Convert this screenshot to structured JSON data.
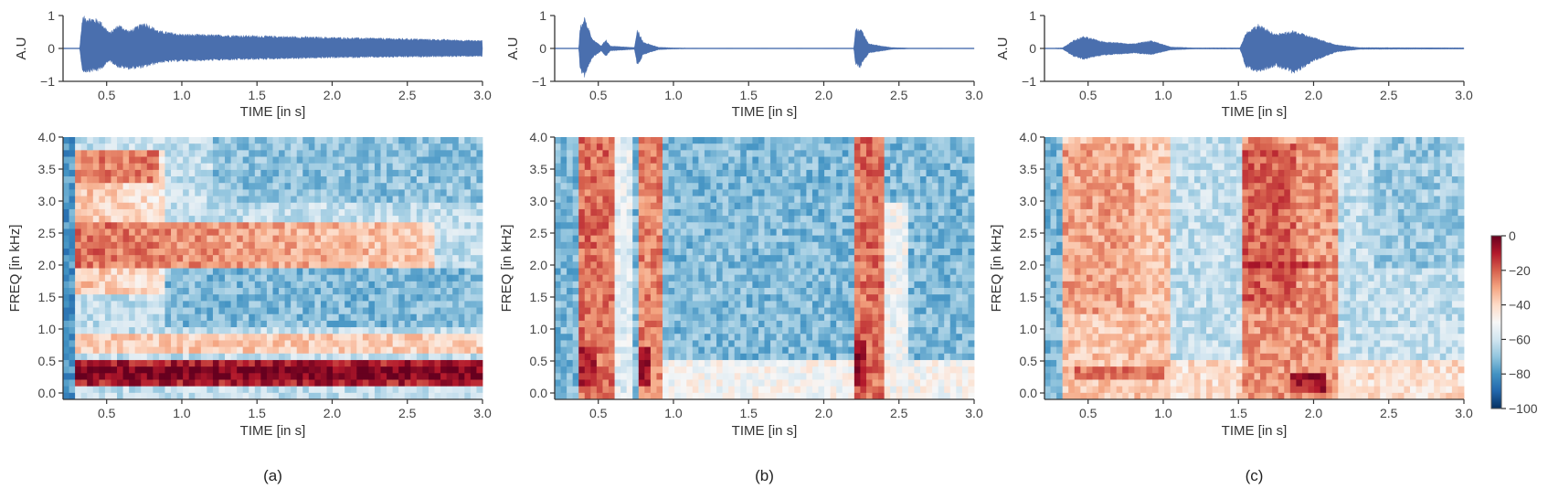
{
  "colors": {
    "waveform": "#4a6fae",
    "axis": "#333333",
    "colormap": "RdBu_r",
    "colormap_stops": [
      "#67001f",
      "#b2182b",
      "#d6604d",
      "#f4a582",
      "#fddbc7",
      "#f7f7f7",
      "#d1e5f0",
      "#92c5de",
      "#4393c3",
      "#2166ac",
      "#053061"
    ]
  },
  "colorbar": {
    "range": [
      -100,
      0
    ],
    "ticks": [
      0,
      -20,
      -40,
      -60,
      -80,
      -100
    ],
    "tick_labels": [
      "0",
      "−20",
      "−40",
      "−60",
      "−80",
      "−100"
    ]
  },
  "chart_data": [
    {
      "label": "(a)",
      "waveform": {
        "type": "area",
        "xlabel": "TIME [in s]",
        "ylabel": "A.U",
        "xlim": [
          0.21,
          3.0
        ],
        "ylim": [
          -1,
          1
        ],
        "xticks": [
          0.5,
          1.0,
          1.5,
          2.0,
          2.5,
          3.0
        ],
        "xtick_labels": [
          "0.5",
          "1.0",
          "1.5",
          "2.0",
          "2.5",
          "3.0"
        ],
        "yticks": [
          1,
          0,
          -1
        ],
        "ytick_labels": [
          "1",
          "0",
          "−1"
        ],
        "envelope": [
          [
            0.21,
            0.01,
            -0.01
          ],
          [
            0.32,
            0.01,
            -0.01
          ],
          [
            0.34,
            1.0,
            -0.75
          ],
          [
            0.45,
            0.9,
            -0.7
          ],
          [
            0.52,
            0.5,
            -0.4
          ],
          [
            0.58,
            0.75,
            -0.6
          ],
          [
            0.65,
            0.55,
            -0.65
          ],
          [
            0.75,
            0.82,
            -0.6
          ],
          [
            0.85,
            0.55,
            -0.45
          ],
          [
            1.0,
            0.45,
            -0.4
          ],
          [
            1.5,
            0.4,
            -0.35
          ],
          [
            2.0,
            0.35,
            -0.3
          ],
          [
            2.6,
            0.3,
            -0.27
          ],
          [
            3.0,
            0.25,
            -0.25
          ]
        ]
      },
      "spectrogram": {
        "type": "heatmap",
        "xlabel": "TIME [in s]",
        "ylabel": "FREQ [in kHz]",
        "xlim": [
          0.21,
          3.0
        ],
        "ylim": [
          -0.1,
          4.0
        ],
        "xticks": [
          0.5,
          1.0,
          1.5,
          2.0,
          2.5,
          3.0
        ],
        "xtick_labels": [
          "0.5",
          "1.0",
          "1.5",
          "2.0",
          "2.5",
          "3.0"
        ],
        "yticks": [
          0.0,
          0.5,
          1.0,
          1.5,
          2.0,
          2.5,
          3.0,
          3.5,
          4.0
        ],
        "ytick_labels": [
          "0.0",
          "0.5",
          "1.0",
          "1.5",
          "2.0",
          "2.5",
          "3.0",
          "3.5",
          "4.0"
        ],
        "background_db": -62,
        "regions_db": [
          {
            "t": [
              0.21,
              0.3
            ],
            "f": [
              -0.1,
              4.0
            ],
            "db": -80
          },
          {
            "t": [
              0.3,
              0.9
            ],
            "f": [
              1.5,
              3.8
            ],
            "db": -35,
            "db_end": -45
          },
          {
            "t": [
              0.3,
              2.7
            ],
            "f": [
              2.0,
              2.7
            ],
            "db": -22,
            "db_end": -38
          },
          {
            "t": [
              0.3,
              0.85
            ],
            "f": [
              3.3,
              3.8
            ],
            "db": -25
          },
          {
            "t": [
              0.9,
              3.0
            ],
            "f": [
              1.05,
              1.9
            ],
            "db": -72
          },
          {
            "t": [
              1.2,
              3.0
            ],
            "f": [
              3.0,
              4.0
            ],
            "db": -70
          },
          {
            "t": [
              0.3,
              3.0
            ],
            "f": [
              0.6,
              0.95
            ],
            "db": -38
          },
          {
            "t": [
              0.3,
              3.0
            ],
            "f": [
              0.1,
              0.55
            ],
            "db": -10
          },
          {
            "t": [
              0.3,
              3.0
            ],
            "f": [
              0.2,
              0.4
            ],
            "db": -3
          }
        ]
      }
    },
    {
      "label": "(b)",
      "waveform": {
        "type": "area",
        "xlabel": "TIME [in s]",
        "ylabel": "A.U",
        "xlim": [
          0.21,
          3.0
        ],
        "ylim": [
          -1,
          1
        ],
        "xticks": [
          0.5,
          1.0,
          1.5,
          2.0,
          2.5,
          3.0
        ],
        "xtick_labels": [
          "0.5",
          "1.0",
          "1.5",
          "2.0",
          "2.5",
          "3.0"
        ],
        "yticks": [
          1,
          0,
          -1
        ],
        "ytick_labels": [
          "1",
          "0",
          "−1"
        ],
        "envelope": [
          [
            0.21,
            0.01,
            -0.01
          ],
          [
            0.37,
            0.01,
            -0.01
          ],
          [
            0.38,
            0.7,
            -0.7
          ],
          [
            0.41,
            0.97,
            -0.9
          ],
          [
            0.46,
            0.3,
            -0.3
          ],
          [
            0.52,
            0.08,
            -0.08
          ],
          [
            0.55,
            0.28,
            -0.25
          ],
          [
            0.58,
            0.08,
            -0.08
          ],
          [
            0.74,
            0.03,
            -0.03
          ],
          [
            0.76,
            0.6,
            -0.55
          ],
          [
            0.8,
            0.2,
            -0.2
          ],
          [
            0.9,
            0.04,
            -0.04
          ],
          [
            1.0,
            0.02,
            -0.02
          ],
          [
            1.2,
            0.01,
            -0.01
          ],
          [
            2.2,
            0.01,
            -0.01
          ],
          [
            2.21,
            0.6,
            -0.5
          ],
          [
            2.24,
            0.65,
            -0.6
          ],
          [
            2.3,
            0.15,
            -0.15
          ],
          [
            2.45,
            0.03,
            -0.03
          ],
          [
            2.6,
            0.01,
            -0.01
          ],
          [
            3.0,
            0.01,
            -0.01
          ]
        ]
      },
      "spectrogram": {
        "type": "heatmap",
        "xlabel": "TIME [in s]",
        "ylabel": "FREQ [in kHz]",
        "xlim": [
          0.21,
          3.0
        ],
        "ylim": [
          -0.1,
          4.0
        ],
        "xticks": [
          0.5,
          1.0,
          1.5,
          2.0,
          2.5,
          3.0
        ],
        "xtick_labels": [
          "0.5",
          "1.0",
          "1.5",
          "2.0",
          "2.5",
          "3.0"
        ],
        "yticks": [
          0.0,
          0.5,
          1.0,
          1.5,
          2.0,
          2.5,
          3.0,
          3.5,
          4.0
        ],
        "ytick_labels": [
          "0.0",
          "0.5",
          "1.0",
          "1.5",
          "2.0",
          "2.5",
          "3.0",
          "3.5",
          "4.0"
        ],
        "background_db": -72,
        "regions_db": [
          {
            "t": [
              0.9,
              3.0
            ],
            "f": [
              -0.1,
              0.5
            ],
            "db": -50
          },
          {
            "t": [
              0.6,
              0.74
            ],
            "f": [
              -0.1,
              4.0
            ],
            "db": -55
          },
          {
            "t": [
              0.37,
              0.6
            ],
            "f": [
              -0.1,
              4.0
            ],
            "db": -22
          },
          {
            "t": [
              0.37,
              0.5
            ],
            "f": [
              0.1,
              0.7
            ],
            "db": -8
          },
          {
            "t": [
              0.75,
              0.92
            ],
            "f": [
              -0.1,
              4.0
            ],
            "db": -25
          },
          {
            "t": [
              0.75,
              0.85
            ],
            "f": [
              0.1,
              0.7
            ],
            "db": -10
          },
          {
            "t": [
              2.2,
              2.42
            ],
            "f": [
              -0.1,
              4.0
            ],
            "db": -22
          },
          {
            "t": [
              2.2,
              2.3
            ],
            "f": [
              0.1,
              0.8
            ],
            "db": -8
          },
          {
            "t": [
              2.42,
              2.55
            ],
            "f": [
              -0.1,
              3.0
            ],
            "db": -52
          }
        ]
      }
    },
    {
      "label": "(c)",
      "waveform": {
        "type": "area",
        "xlabel": "TIME [in s]",
        "ylabel": "A.U",
        "xlim": [
          0.21,
          3.0
        ],
        "ylim": [
          -1,
          1
        ],
        "xticks": [
          0.5,
          1.0,
          1.5,
          2.0,
          2.5,
          3.0
        ],
        "xtick_labels": [
          "0.5",
          "1.0",
          "1.5",
          "2.0",
          "2.5",
          "3.0"
        ],
        "yticks": [
          1,
          0,
          -1
        ],
        "ytick_labels": [
          "1",
          "0",
          "−1"
        ],
        "envelope": [
          [
            0.21,
            0.01,
            -0.01
          ],
          [
            0.33,
            0.02,
            -0.02
          ],
          [
            0.4,
            0.25,
            -0.25
          ],
          [
            0.47,
            0.38,
            -0.35
          ],
          [
            0.6,
            0.22,
            -0.22
          ],
          [
            0.8,
            0.15,
            -0.15
          ],
          [
            0.92,
            0.25,
            -0.2
          ],
          [
            1.05,
            0.05,
            -0.05
          ],
          [
            1.2,
            0.02,
            -0.02
          ],
          [
            1.51,
            0.02,
            -0.02
          ],
          [
            1.55,
            0.5,
            -0.6
          ],
          [
            1.63,
            0.75,
            -0.75
          ],
          [
            1.75,
            0.45,
            -0.55
          ],
          [
            1.87,
            0.55,
            -0.8
          ],
          [
            2.0,
            0.35,
            -0.4
          ],
          [
            2.15,
            0.12,
            -0.12
          ],
          [
            2.3,
            0.03,
            -0.03
          ],
          [
            3.0,
            0.02,
            -0.02
          ]
        ]
      },
      "spectrogram": {
        "type": "heatmap",
        "xlabel": "TIME [in s]",
        "ylabel": "FREQ [in kHz]",
        "xlim": [
          0.21,
          3.0
        ],
        "ylim": [
          -0.1,
          4.0
        ],
        "xticks": [
          0.5,
          1.0,
          1.5,
          2.0,
          2.5,
          3.0
        ],
        "xtick_labels": [
          "0.5",
          "1.0",
          "1.5",
          "2.0",
          "2.5",
          "3.0"
        ],
        "yticks": [
          0.0,
          0.5,
          1.0,
          1.5,
          2.0,
          2.5,
          3.0,
          3.5,
          4.0
        ],
        "ytick_labels": [
          "0.0",
          "0.5",
          "1.0",
          "1.5",
          "2.0",
          "2.5",
          "3.0",
          "3.5",
          "4.0"
        ],
        "background_db": -62,
        "regions_db": [
          {
            "t": [
              0.21,
              0.33
            ],
            "f": [
              -0.1,
              4.0
            ],
            "db": -72
          },
          {
            "t": [
              0.33,
              3.0
            ],
            "f": [
              -0.1,
              0.5
            ],
            "db": -42
          },
          {
            "t": [
              0.33,
              1.05
            ],
            "f": [
              -0.1,
              4.0
            ],
            "db": -36
          },
          {
            "t": [
              0.33,
              0.8
            ],
            "f": [
              1.2,
              3.9
            ],
            "db": -30
          },
          {
            "t": [
              0.4,
              1.0
            ],
            "f": [
              0.2,
              0.4
            ],
            "db": -22
          },
          {
            "t": [
              1.52,
              2.15
            ],
            "f": [
              -0.1,
              4.0
            ],
            "db": -28
          },
          {
            "t": [
              1.52,
              1.9
            ],
            "f": [
              1.3,
              3.9
            ],
            "db": -20
          },
          {
            "t": [
              1.52,
              2.1
            ],
            "f": [
              1.9,
              2.1
            ],
            "db": -12
          },
          {
            "t": [
              1.85,
              2.1
            ],
            "f": [
              0.0,
              0.3
            ],
            "db": -8
          },
          {
            "t": [
              2.4,
              3.0
            ],
            "f": [
              2.0,
              4.0
            ],
            "db": -68
          }
        ]
      }
    }
  ]
}
